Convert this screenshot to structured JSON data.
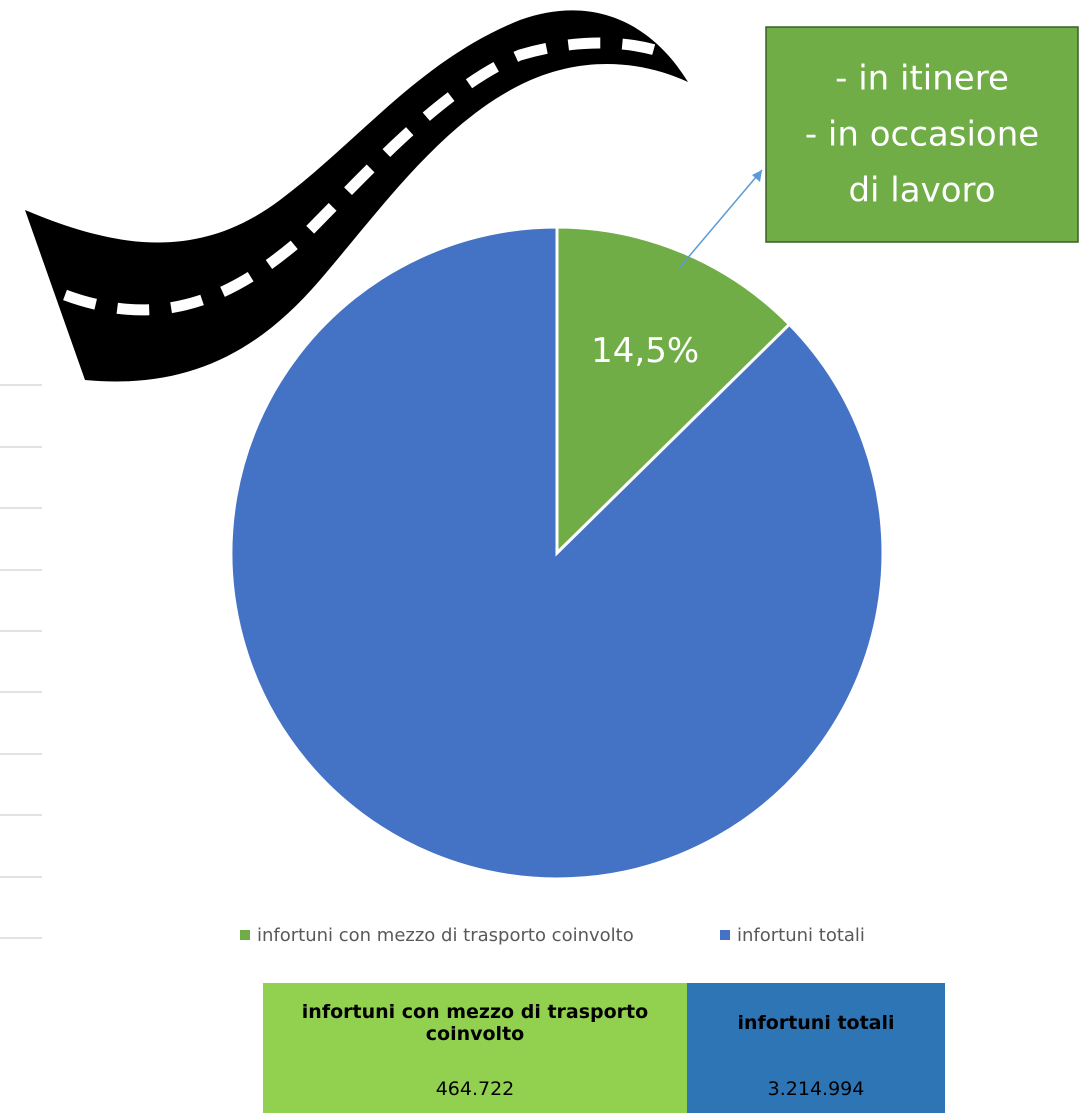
{
  "chart_data": {
    "type": "pie",
    "categories": [
      "infortuni con mezzo di trasporto coinvolto",
      "infortuni totali"
    ],
    "values": [
      464722,
      3214994
    ],
    "value_labels": [
      "464.722",
      "3.214.994"
    ],
    "colors": [
      "#70ad47",
      "#4472c4"
    ],
    "slice_label": "14,5%",
    "callout": [
      "- in itinere",
      "- in occasione",
      "di lavoro"
    ],
    "legend": "bottom"
  }
}
